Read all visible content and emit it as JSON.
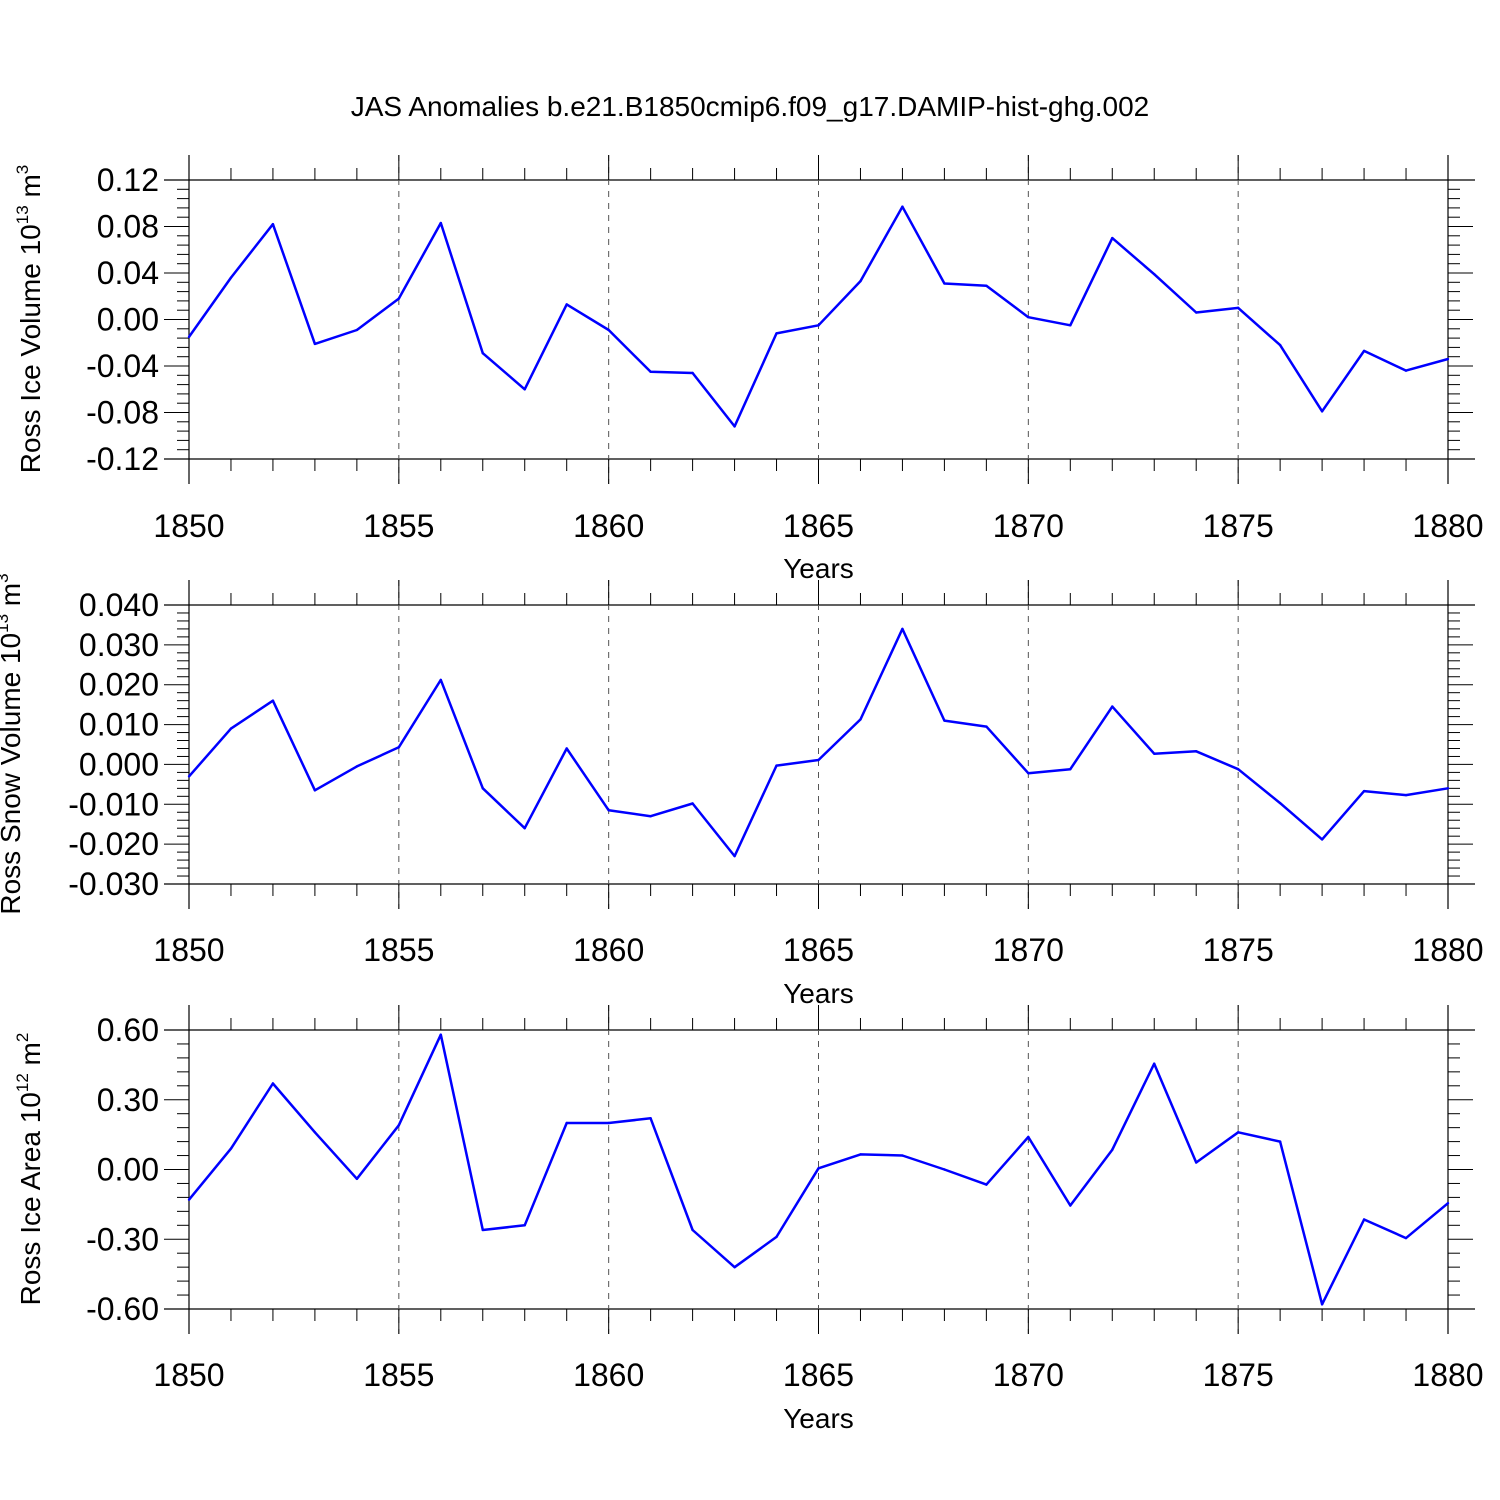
{
  "title": "JAS Anomalies b.e21.B1850cmip6.f09_g17.DAMIP-hist-ghg.002",
  "chart_data": [
    {
      "type": "line",
      "ylabel": "Ross Ice Volume 10",
      "ylabel_sup1": "13",
      "ylabel_mid": " m",
      "ylabel_sup2": "3",
      "xlabel": "Years",
      "xlim": [
        1850,
        1880
      ],
      "ylim": [
        -0.12,
        0.12
      ],
      "xticks": [
        "1850",
        "1855",
        "1860",
        "1865",
        "1870",
        "1875",
        "1880"
      ],
      "yticks": [
        {
          "value": 0.12,
          "label": "0.12"
        },
        {
          "value": 0.08,
          "label": "0.08"
        },
        {
          "value": 0.04,
          "label": "0.04"
        },
        {
          "value": 0.0,
          "label": "0.00"
        },
        {
          "value": -0.04,
          "label": "-0.04"
        },
        {
          "value": -0.08,
          "label": "-0.08"
        },
        {
          "value": -0.12,
          "label": "-0.12"
        }
      ],
      "x": [
        1850,
        1851,
        1852,
        1853,
        1854,
        1855,
        1856,
        1857,
        1858,
        1859,
        1860,
        1861,
        1862,
        1863,
        1864,
        1865,
        1866,
        1867,
        1868,
        1869,
        1870,
        1871,
        1872,
        1873,
        1874,
        1875,
        1876,
        1877,
        1878,
        1879,
        1880
      ],
      "values": [
        -0.015,
        0.036,
        0.082,
        -0.021,
        -0.009,
        0.018,
        0.083,
        -0.029,
        -0.06,
        0.013,
        -0.009,
        -0.045,
        -0.046,
        -0.092,
        -0.012,
        -0.005,
        0.033,
        0.097,
        0.031,
        0.029,
        0.002,
        -0.005,
        0.07,
        0.039,
        0.006,
        0.01,
        -0.022,
        -0.079,
        -0.027,
        -0.044,
        -0.034
      ],
      "grid": "dashed vertical at x ticks",
      "color": "#0000ff"
    },
    {
      "type": "line",
      "ylabel": "Ross Snow Volume 10",
      "ylabel_sup1": "13",
      "ylabel_mid": " m",
      "ylabel_sup2": "3",
      "xlabel": "Years",
      "xlim": [
        1850,
        1880
      ],
      "ylim": [
        -0.03,
        0.04
      ],
      "xticks": [
        "1850",
        "1855",
        "1860",
        "1865",
        "1870",
        "1875",
        "1880"
      ],
      "yticks": [
        {
          "value": 0.04,
          "label": "0.040"
        },
        {
          "value": 0.03,
          "label": "0.030"
        },
        {
          "value": 0.02,
          "label": "0.020"
        },
        {
          "value": 0.01,
          "label": "0.010"
        },
        {
          "value": 0.0,
          "label": "0.000"
        },
        {
          "value": -0.01,
          "label": "-0.010"
        },
        {
          "value": -0.02,
          "label": "-0.020"
        },
        {
          "value": -0.03,
          "label": "-0.030"
        }
      ],
      "x": [
        1850,
        1851,
        1852,
        1853,
        1854,
        1855,
        1856,
        1857,
        1858,
        1859,
        1860,
        1861,
        1862,
        1863,
        1864,
        1865,
        1866,
        1867,
        1868,
        1869,
        1870,
        1871,
        1872,
        1873,
        1874,
        1875,
        1876,
        1877,
        1878,
        1879,
        1880
      ],
      "values": [
        -0.003,
        0.009,
        0.016,
        -0.0065,
        -0.0005,
        0.0043,
        0.0212,
        -0.006,
        -0.016,
        0.004,
        -0.0115,
        -0.013,
        -0.0098,
        -0.023,
        -0.0003,
        0.0011,
        0.0113,
        0.034,
        0.011,
        0.0095,
        -0.0022,
        -0.0012,
        0.0145,
        0.0027,
        0.0033,
        -0.0012,
        -0.0097,
        -0.0188,
        -0.0067,
        -0.0077,
        -0.006
      ],
      "grid": "dashed vertical at x ticks",
      "color": "#0000ff"
    },
    {
      "type": "line",
      "ylabel": "Ross Ice Area 10",
      "ylabel_sup1": "12",
      "ylabel_mid": " m",
      "ylabel_sup2": "2",
      "xlabel": "Years",
      "xlim": [
        1850,
        1880
      ],
      "ylim": [
        -0.6,
        0.6
      ],
      "xticks": [
        "1850",
        "1855",
        "1860",
        "1865",
        "1870",
        "1875",
        "1880"
      ],
      "yticks": [
        {
          "value": 0.6,
          "label": "0.60"
        },
        {
          "value": 0.3,
          "label": "0.30"
        },
        {
          "value": 0.0,
          "label": "0.00"
        },
        {
          "value": -0.3,
          "label": "-0.30"
        },
        {
          "value": -0.6,
          "label": "-0.60"
        }
      ],
      "x": [
        1850,
        1851,
        1852,
        1853,
        1854,
        1855,
        1856,
        1857,
        1858,
        1859,
        1860,
        1861,
        1862,
        1863,
        1864,
        1865,
        1866,
        1867,
        1868,
        1869,
        1870,
        1871,
        1872,
        1873,
        1874,
        1875,
        1876,
        1877,
        1878,
        1879,
        1880
      ],
      "values": [
        -0.13,
        0.09,
        0.37,
        0.16,
        -0.04,
        0.19,
        0.58,
        -0.26,
        -0.24,
        0.2,
        0.2,
        0.22,
        -0.26,
        -0.42,
        -0.29,
        0.005,
        0.065,
        0.06,
        0.0,
        -0.065,
        0.14,
        -0.155,
        0.085,
        0.455,
        0.03,
        0.16,
        0.12,
        -0.58,
        -0.215,
        -0.295,
        -0.145
      ],
      "grid": "dashed vertical at x ticks",
      "color": "#0000ff"
    }
  ]
}
